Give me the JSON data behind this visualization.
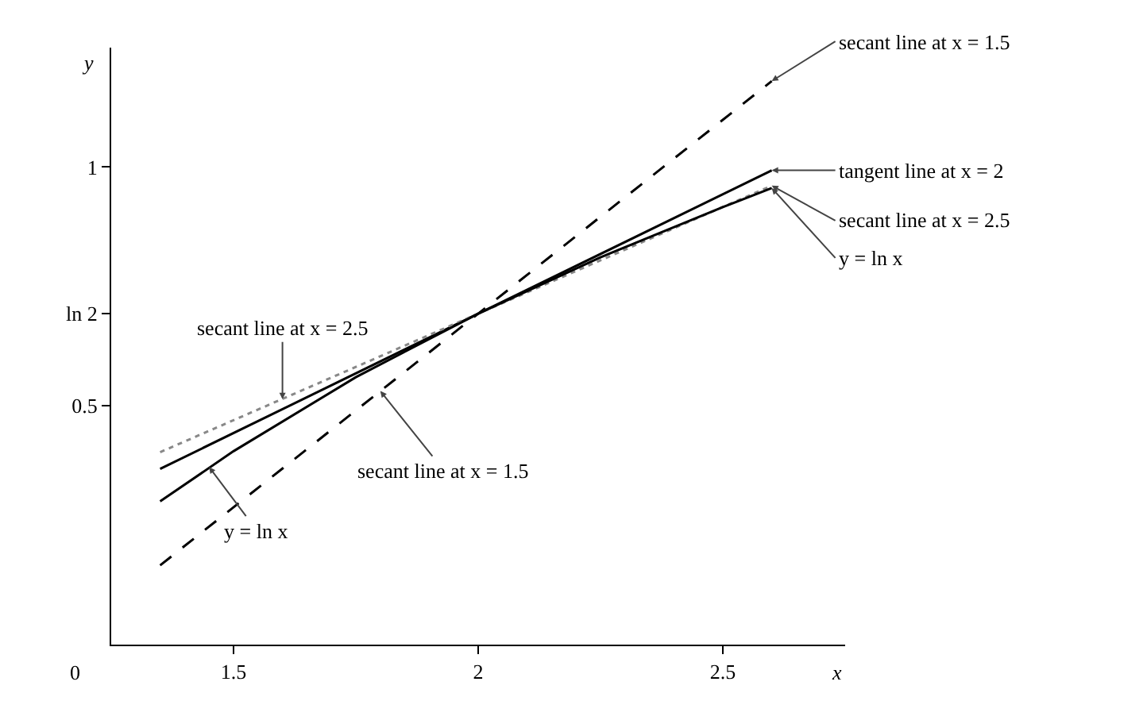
{
  "chart_data": {
    "type": "line",
    "xlabel": "x",
    "ylabel": "y",
    "xlim": [
      1.25,
      2.75
    ],
    "ylim": [
      0,
      1.25
    ],
    "xticks": [
      1.5,
      2,
      2.5
    ],
    "yticks": [
      0.5,
      {
        "value": 0.693,
        "label": "ln 2"
      },
      1
    ],
    "grid": false,
    "marker": "none",
    "legend": false,
    "series": [
      {
        "name": "secant line at x = 1.5",
        "color": "#000000",
        "line_style": "dashed",
        "x": [
          1.35,
          2,
          2.6
        ],
        "values": [
          0.166,
          0.693,
          1.18
        ]
      },
      {
        "name": "tangent line at x = 2",
        "color": "#000000",
        "line_style": "solid",
        "x": [
          1.35,
          2,
          2.6
        ],
        "values": [
          0.368,
          0.693,
          0.993
        ]
      },
      {
        "name": "secant line at x = 2.5",
        "color": "#888888",
        "line_style": "dotted",
        "x": [
          1.35,
          2,
          2.6
        ],
        "values": [
          0.403,
          0.693,
          0.961
        ]
      },
      {
        "name": "y = ln x",
        "color": "#000000",
        "line_style": "solid",
        "x": [
          1.35,
          1.5,
          1.75,
          2,
          2.25,
          2.5,
          2.6
        ],
        "values": [
          0.3,
          0.405,
          0.56,
          0.693,
          0.811,
          0.916,
          0.956
        ]
      }
    ],
    "annotations": [
      "0",
      {
        "text": "secant line at x = 2.5",
        "x": 1.6,
        "y": 0.514
      },
      {
        "text": "secant line at x = 1.5",
        "x": 1.8,
        "y": 0.531
      },
      {
        "text": "y = ln x",
        "x": 1.45,
        "y": 0.372
      }
    ]
  }
}
